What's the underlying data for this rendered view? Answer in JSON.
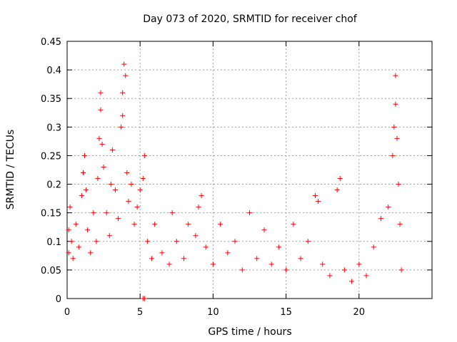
{
  "chart_data": {
    "type": "scatter",
    "title": "Day 073 of 2020, SRMTID for receiver chof",
    "xlabel": "GPS time / hours",
    "ylabel": "SRMTID / TECUs",
    "xlim": [
      0,
      25
    ],
    "ylim": [
      0,
      0.45
    ],
    "xticks": [
      0,
      5,
      10,
      15,
      20
    ],
    "yticks": [
      0,
      0.05,
      0.1,
      0.15,
      0.2,
      0.25,
      0.3,
      0.35,
      0.4,
      0.45
    ],
    "xtick_labels": [
      "0",
      "5",
      "10",
      "15",
      "20"
    ],
    "ytick_labels": [
      "0",
      "0.05",
      "0.1",
      "0.15",
      "0.2",
      "0.25",
      "0.3",
      "0.35",
      "0.4",
      "0.45"
    ],
    "grid": true,
    "marker": "plus",
    "color": "#ff0000",
    "series": [
      {
        "name": "SRMTID",
        "points": [
          [
            0.1,
            0.08
          ],
          [
            0.1,
            0.12
          ],
          [
            0.2,
            0.16
          ],
          [
            0.3,
            0.1
          ],
          [
            0.4,
            0.07
          ],
          [
            0.6,
            0.13
          ],
          [
            0.8,
            0.09
          ],
          [
            1.0,
            0.18
          ],
          [
            1.1,
            0.22
          ],
          [
            1.2,
            0.25
          ],
          [
            1.3,
            0.19
          ],
          [
            1.4,
            0.12
          ],
          [
            1.6,
            0.08
          ],
          [
            1.8,
            0.15
          ],
          [
            2.0,
            0.1
          ],
          [
            2.1,
            0.21
          ],
          [
            2.2,
            0.28
          ],
          [
            2.3,
            0.33
          ],
          [
            2.3,
            0.36
          ],
          [
            2.4,
            0.27
          ],
          [
            2.5,
            0.23
          ],
          [
            2.7,
            0.15
          ],
          [
            2.9,
            0.11
          ],
          [
            3.0,
            0.2
          ],
          [
            3.1,
            0.26
          ],
          [
            3.3,
            0.19
          ],
          [
            3.5,
            0.14
          ],
          [
            3.7,
            0.3
          ],
          [
            3.8,
            0.32
          ],
          [
            3.8,
            0.36
          ],
          [
            3.9,
            0.41
          ],
          [
            4.0,
            0.39
          ],
          [
            4.1,
            0.22
          ],
          [
            4.2,
            0.17
          ],
          [
            4.4,
            0.2
          ],
          [
            4.6,
            0.13
          ],
          [
            4.8,
            0.16
          ],
          [
            5.0,
            0.19
          ],
          [
            5.2,
            0.21
          ],
          [
            5.3,
            0.25
          ],
          [
            5.2,
            0.0
          ],
          [
            5.3,
            0.0
          ],
          [
            5.5,
            0.1
          ],
          [
            5.8,
            0.07
          ],
          [
            6.0,
            0.13
          ],
          [
            6.5,
            0.08
          ],
          [
            7.0,
            0.06
          ],
          [
            7.2,
            0.15
          ],
          [
            7.5,
            0.1
          ],
          [
            8.0,
            0.07
          ],
          [
            8.3,
            0.13
          ],
          [
            8.8,
            0.11
          ],
          [
            9.0,
            0.16
          ],
          [
            9.2,
            0.18
          ],
          [
            9.5,
            0.09
          ],
          [
            10.0,
            0.06
          ],
          [
            10.5,
            0.13
          ],
          [
            11.0,
            0.08
          ],
          [
            11.5,
            0.1
          ],
          [
            12.0,
            0.05
          ],
          [
            12.5,
            0.15
          ],
          [
            13.0,
            0.07
          ],
          [
            13.5,
            0.12
          ],
          [
            14.0,
            0.06
          ],
          [
            14.5,
            0.09
          ],
          [
            15.0,
            0.05
          ],
          [
            15.5,
            0.13
          ],
          [
            16.0,
            0.07
          ],
          [
            16.5,
            0.1
          ],
          [
            17.0,
            0.18
          ],
          [
            17.2,
            0.17
          ],
          [
            17.5,
            0.06
          ],
          [
            18.0,
            0.04
          ],
          [
            18.5,
            0.19
          ],
          [
            18.7,
            0.21
          ],
          [
            19.0,
            0.05
          ],
          [
            19.5,
            0.03
          ],
          [
            20.0,
            0.06
          ],
          [
            20.5,
            0.04
          ],
          [
            21.0,
            0.09
          ],
          [
            21.5,
            0.14
          ],
          [
            22.0,
            0.16
          ],
          [
            22.3,
            0.25
          ],
          [
            22.4,
            0.3
          ],
          [
            22.5,
            0.34
          ],
          [
            22.5,
            0.39
          ],
          [
            22.6,
            0.28
          ],
          [
            22.7,
            0.2
          ],
          [
            22.8,
            0.13
          ],
          [
            22.9,
            0.05
          ]
        ]
      }
    ]
  }
}
